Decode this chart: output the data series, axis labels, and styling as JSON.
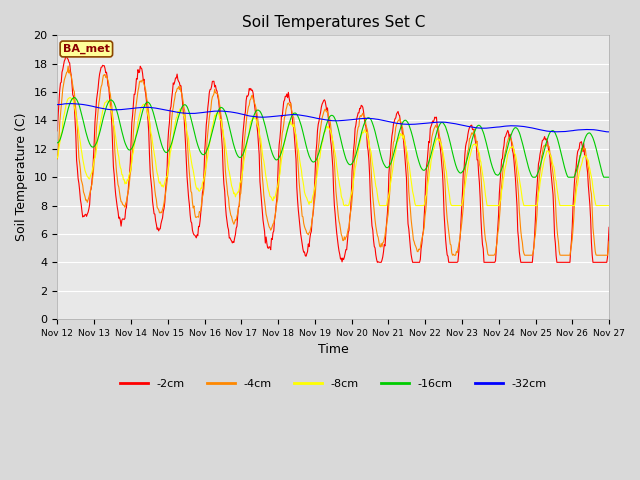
{
  "title": "Soil Temperatures Set C",
  "xlabel": "Time",
  "ylabel": "Soil Temperature (C)",
  "ylim": [
    0,
    20
  ],
  "yticks": [
    0,
    2,
    4,
    6,
    8,
    10,
    12,
    14,
    16,
    18,
    20
  ],
  "colors": {
    "-2cm": "#ff0000",
    "-4cm": "#ff8800",
    "-8cm": "#ffff00",
    "-16cm": "#00cc00",
    "-32cm": "#0000ff"
  },
  "legend_label": "BA_met",
  "plot_bg_color": "#e8e8e8",
  "fig_bg_color": "#d9d9d9",
  "n_pts": 720,
  "n_days": 15,
  "x_tick_labels": [
    "Nov 12",
    "Nov 13",
    "Nov 14",
    "Nov 15",
    "Nov 16",
    "Nov 17",
    "Nov 18",
    "Nov 19",
    "Nov 20",
    "Nov 21",
    "Nov 22",
    "Nov 23",
    "Nov 24",
    "Nov 25",
    "Nov 26",
    "Nov 27"
  ],
  "linewidth": 0.8,
  "figsize": [
    6.4,
    4.8
  ],
  "dpi": 100
}
